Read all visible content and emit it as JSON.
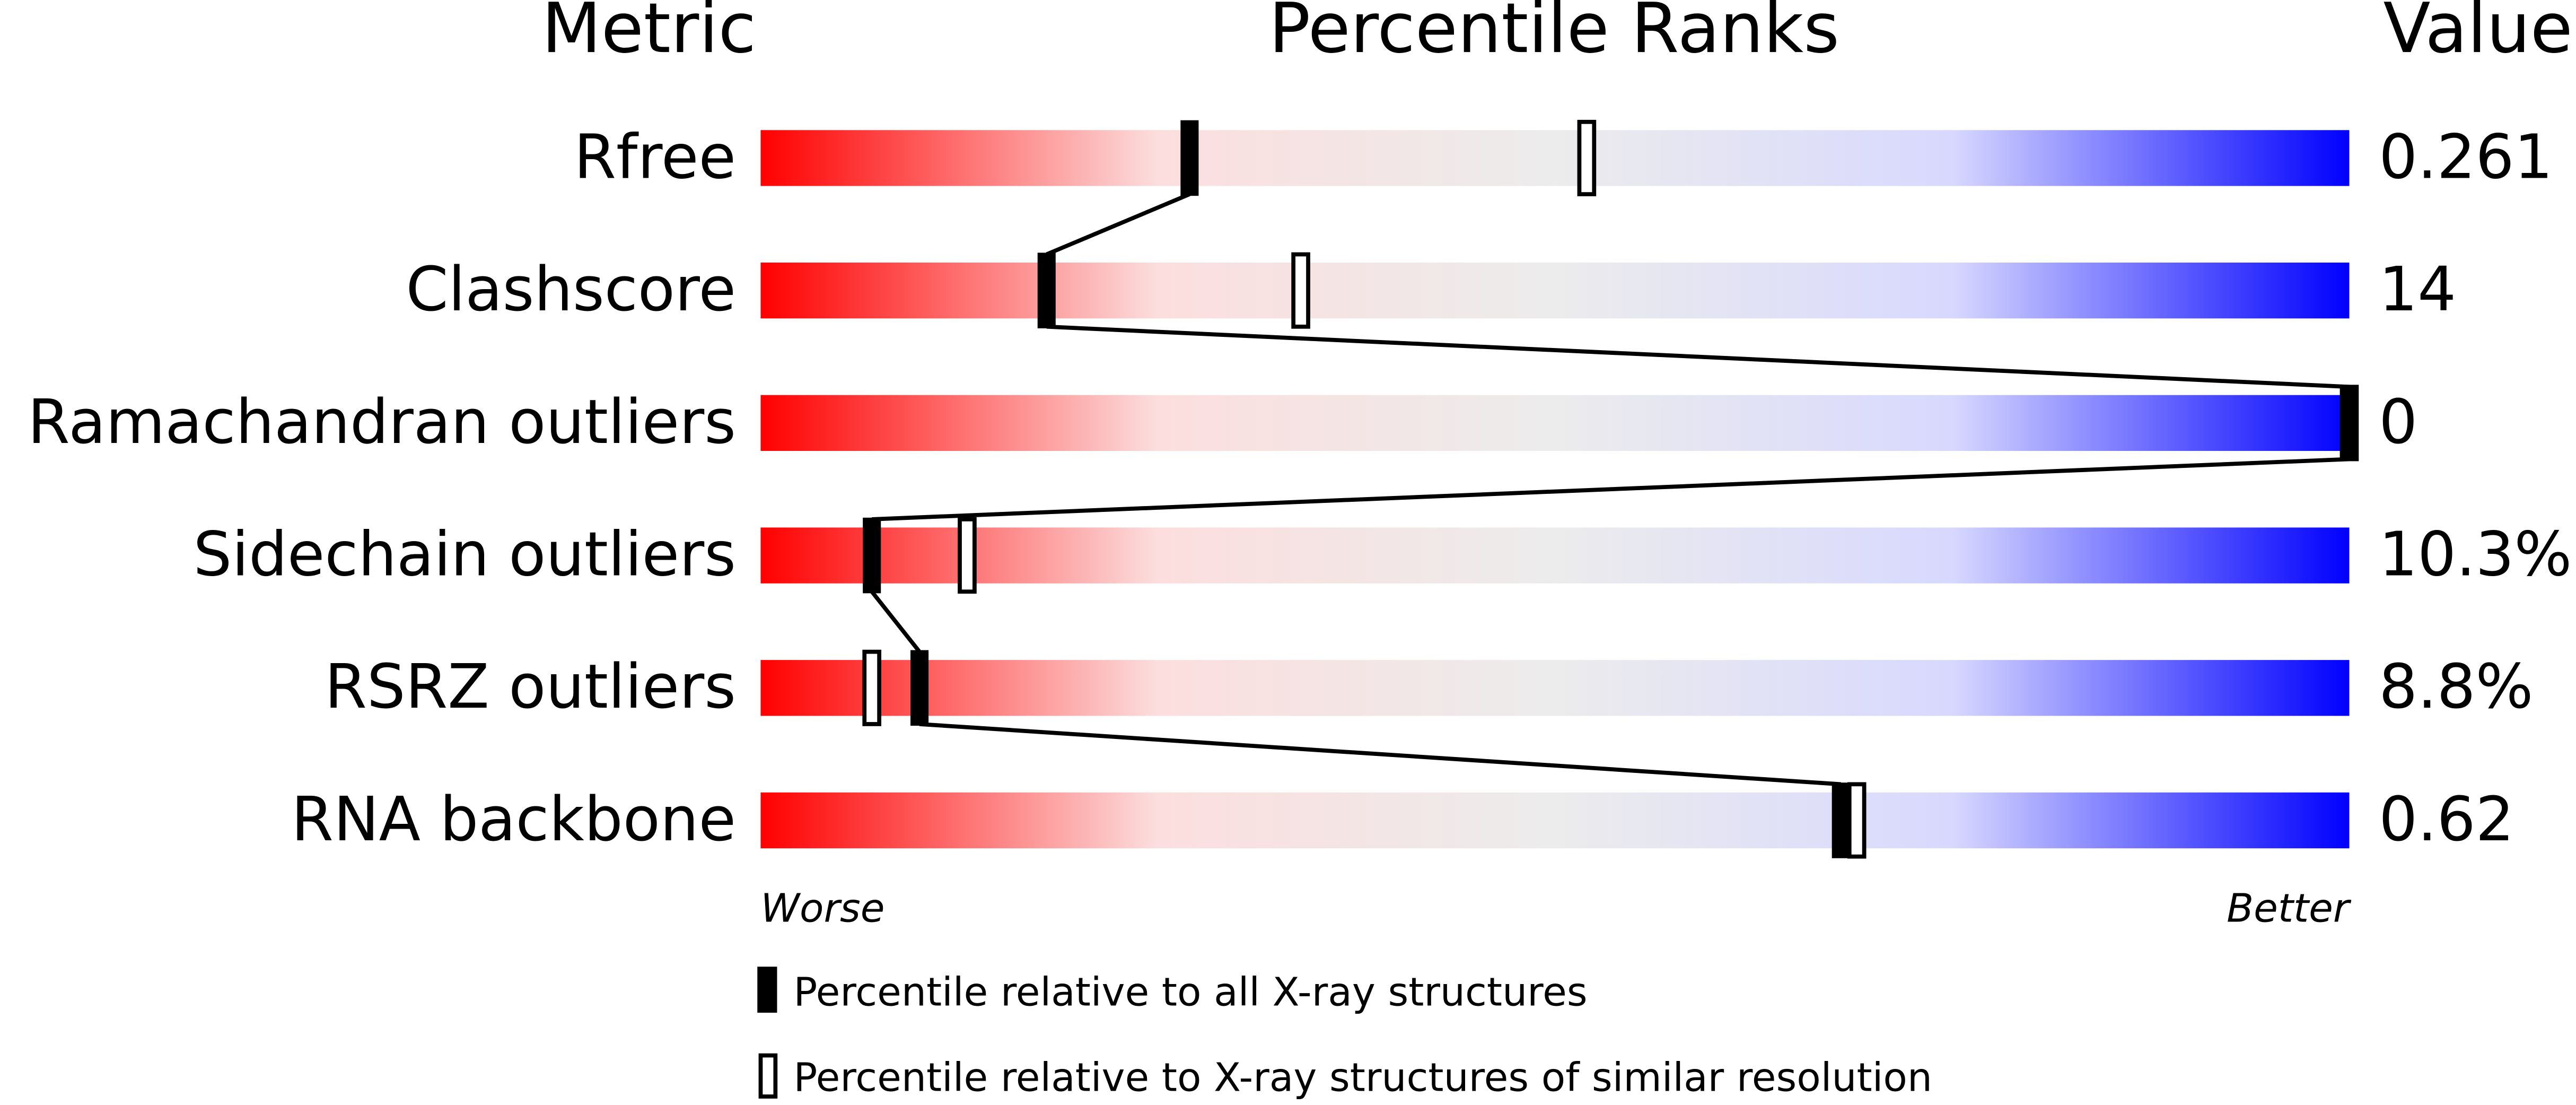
{
  "chart_data": {
    "type": "percentile",
    "headers": [
      "Metric",
      "Percentile Ranks",
      "Value"
    ],
    "categories": [
      "Rfree",
      "Clashscore",
      "Ramachandran outliers",
      "Sidechain outliers",
      "RSRZ outliers",
      "RNA backbone"
    ],
    "value_column": [
      "0.261",
      "14",
      "0",
      "10.3%",
      "8.8%",
      "0.62"
    ],
    "series": [
      {
        "name": "Percentile relative to all X-ray structures",
        "style": "filled",
        "color": "#000000",
        "values": [
          27,
          18,
          100,
          7,
          10,
          68
        ]
      },
      {
        "name": "Percentile relative to X-ray structures of similar resolution",
        "style": "hollow",
        "color": "#000000",
        "values": [
          52,
          34,
          100,
          13,
          7,
          69
        ]
      }
    ],
    "xlim": [
      0,
      100
    ],
    "x_label_left": "Worse",
    "x_label_right": "Better",
    "gradient": [
      "#ff0000",
      "#fcdede",
      "#ececec",
      "#d8d8ff",
      "#0000ff"
    ]
  }
}
